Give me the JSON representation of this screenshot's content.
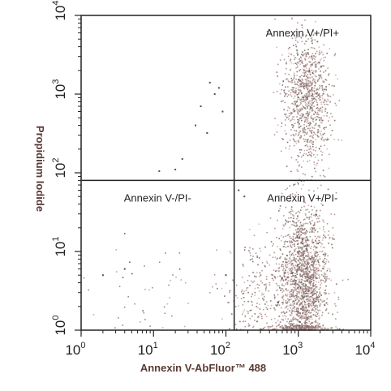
{
  "chart_data": {
    "type": "scatter",
    "title": "",
    "xlabel": "Annexin V-AbFluor™ 488",
    "ylabel": "Propidium Iodide",
    "xscale": "log",
    "yscale": "log",
    "xlim": [
      1,
      10000
    ],
    "ylim": [
      1,
      10000
    ],
    "x_ticks": [
      {
        "base": "10",
        "exp": "0",
        "value": 1
      },
      {
        "base": "10",
        "exp": "1",
        "value": 10
      },
      {
        "base": "10",
        "exp": "2",
        "value": 100
      },
      {
        "base": "10",
        "exp": "3",
        "value": 1000
      },
      {
        "base": "10",
        "exp": "4",
        "value": 10000
      }
    ],
    "y_ticks": [
      {
        "base": "10",
        "exp": "0",
        "value": 1
      },
      {
        "base": "10",
        "exp": "1",
        "value": 10
      },
      {
        "base": "10",
        "exp": "2",
        "value": 100
      },
      {
        "base": "10",
        "exp": "3",
        "value": 1000
      },
      {
        "base": "10",
        "exp": "4",
        "value": 10000
      }
    ],
    "gates": {
      "x": 130,
      "y": 80
    },
    "quadrant_labels": {
      "upper_right": "Annexin V+/PI+",
      "lower_left": "Annexin V-/PI-",
      "lower_right": "Annexin V+/PI-"
    },
    "point_color": "#9c7a76",
    "point_color_light": "#b9a3a0",
    "point_color_dark": "#5b4b49",
    "populations": [
      {
        "name_hint": "early-apoptotic",
        "count": 1800,
        "center_x": 1200,
        "center_y": 4,
        "spread_x_log": 0.17,
        "spread_y_log": 0.5
      },
      {
        "name_hint": "late-apoptotic",
        "count": 1000,
        "center_x": 1300,
        "center_y": 900,
        "spread_x_log": 0.16,
        "spread_y_log": 0.4
      },
      {
        "name_hint": "debris",
        "count": 250,
        "center_x": 300,
        "center_y": 3,
        "spread_x_log": 0.25,
        "spread_y_log": 0.35
      },
      {
        "name_hint": "viable",
        "count": 45,
        "center_x": 8,
        "center_y": 3,
        "spread_x_log": 0.4,
        "spread_y_log": 0.3
      }
    ],
    "sparse_points": [
      [
        60,
        1400
      ],
      [
        70,
        1000
      ],
      [
        45,
        700
      ],
      [
        38,
        400
      ],
      [
        55,
        320
      ],
      [
        20,
        110
      ],
      [
        12,
        105
      ],
      [
        25,
        150
      ],
      [
        80,
        1200
      ],
      [
        90,
        600
      ],
      [
        2,
        5
      ],
      [
        4,
        6
      ],
      [
        100,
        5
      ],
      [
        150,
        60
      ],
      [
        180,
        50
      ]
    ],
    "grid": false,
    "legend": "none"
  }
}
